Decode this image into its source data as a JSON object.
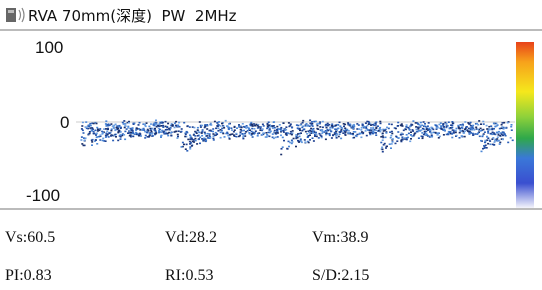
{
  "header": {
    "title": "RVA 70mm(深度)  PW  2MHz"
  },
  "scale": {
    "labels": [
      "100",
      "0",
      "-100"
    ]
  },
  "measurements": {
    "rows": [
      [
        "Vs:60.5",
        "Vd:28.2",
        "Vm:38.9"
      ],
      [
        "PI:0.83",
        "RI:0.53",
        "S/D:2.15"
      ]
    ]
  }
}
